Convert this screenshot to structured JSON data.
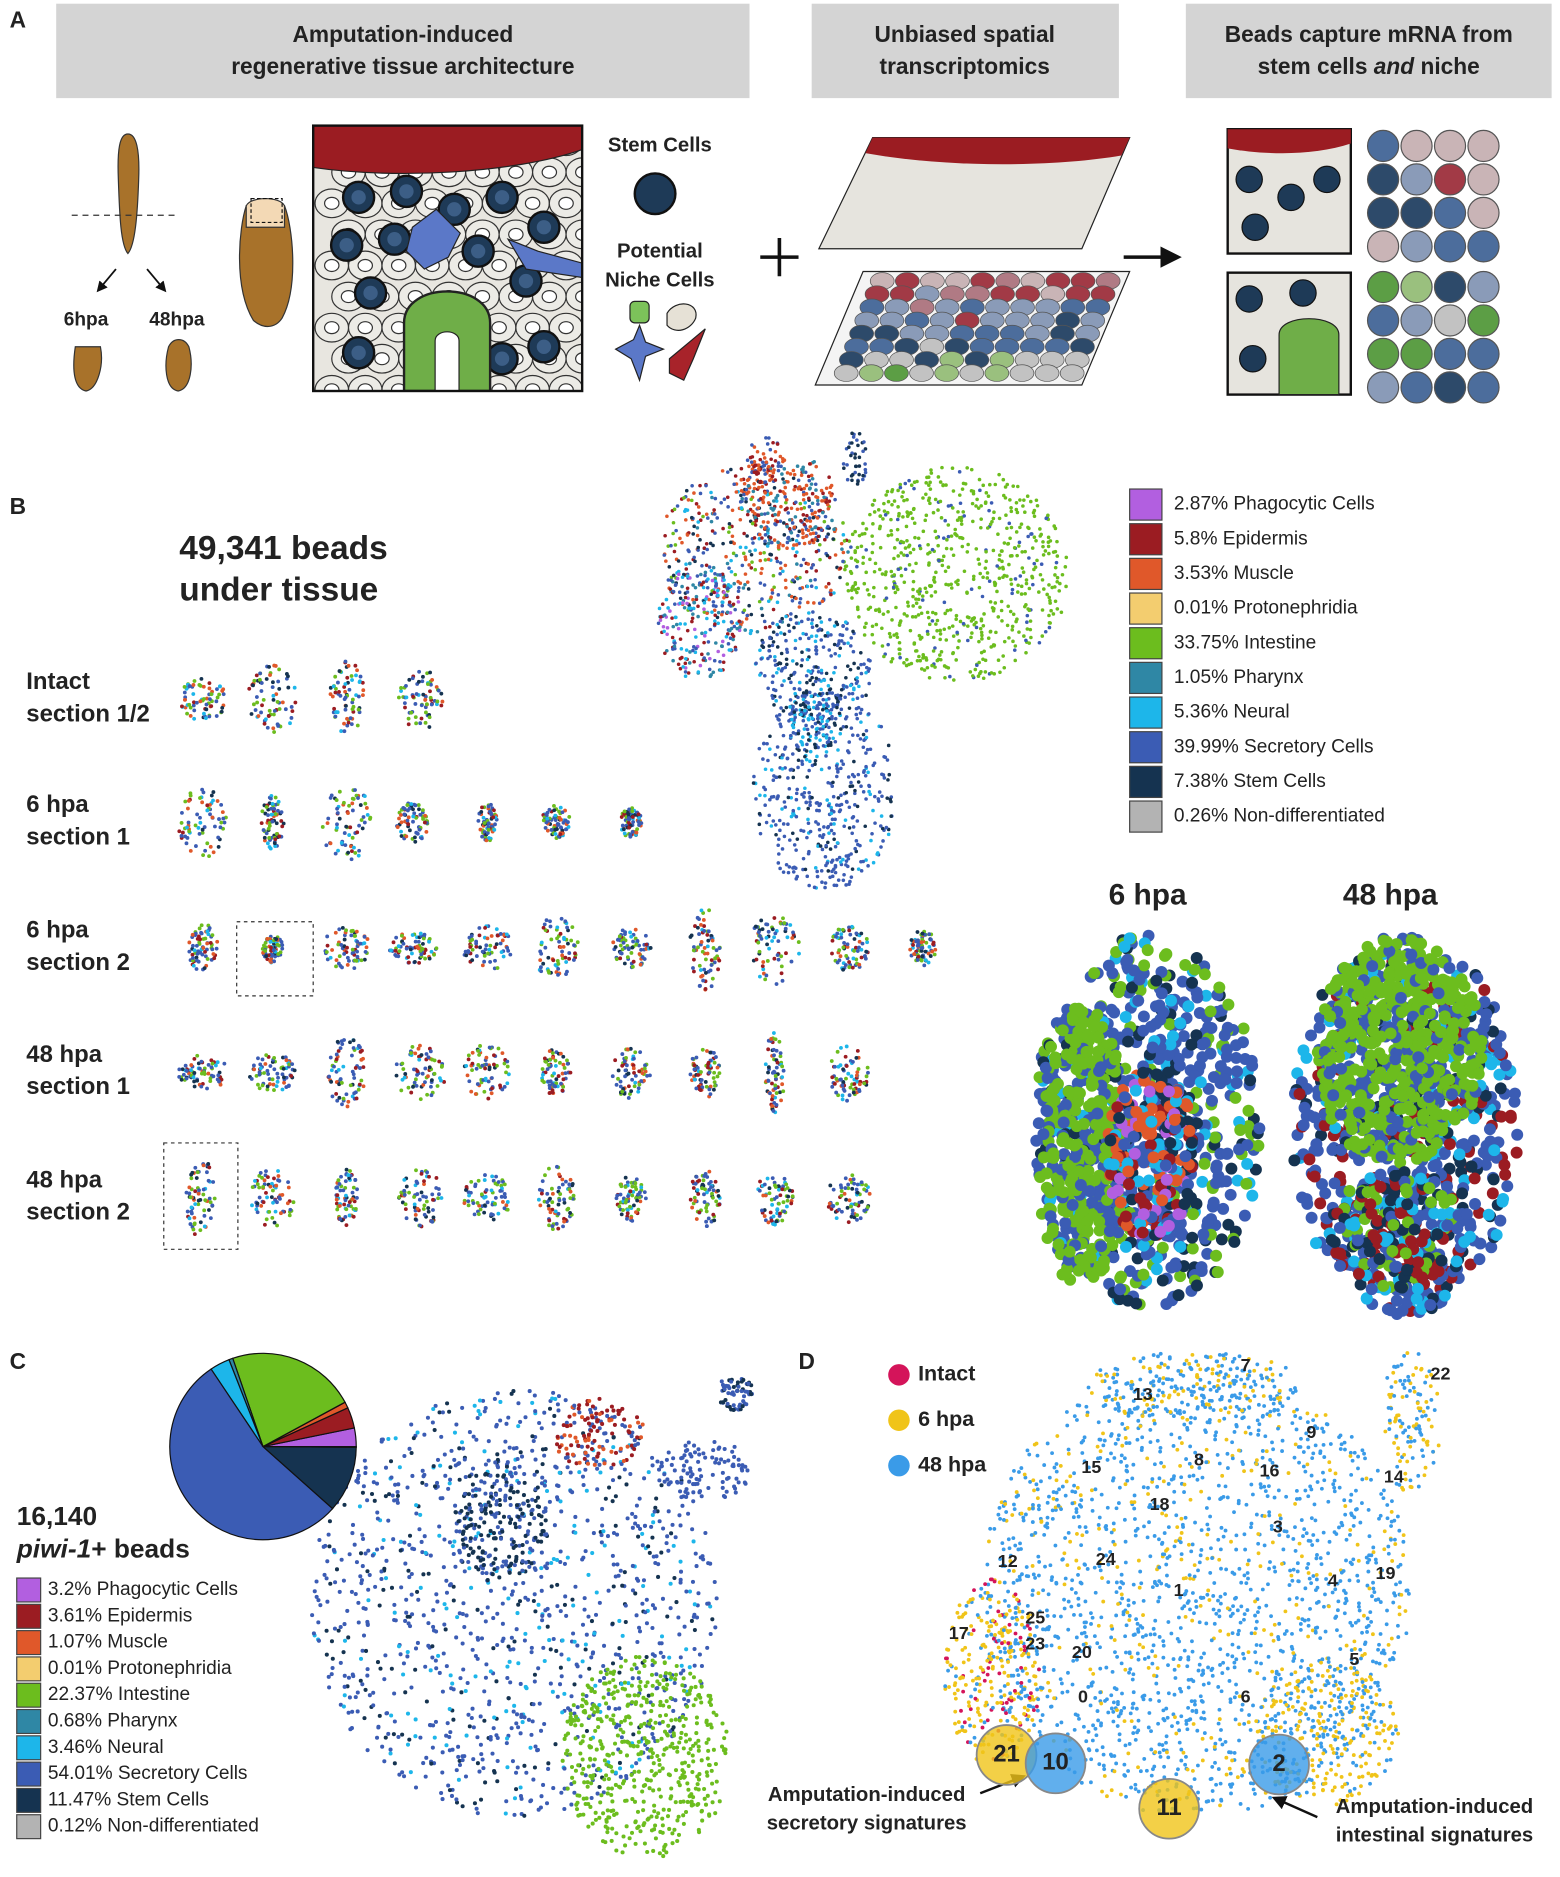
{
  "panel_a": {
    "label": "A",
    "boxes": [
      [
        "Amputation-induced",
        "regenerative tissue architecture"
      ],
      [
        "Unbiased spatial",
        "transcriptomics"
      ]
    ],
    "box3": {
      "line1": "Beads capture mRNA from",
      "line2": [
        "stem cells ",
        "and",
        " niche"
      ]
    },
    "worm_labels": [
      "6hpa",
      "48hpa"
    ],
    "stem_cells": "Stem Cells",
    "niche": [
      "Potential",
      "Niche Cells"
    ]
  },
  "panel_b": {
    "label": "B",
    "bead_count": [
      "49,341 beads",
      "under tissue"
    ],
    "rows": [
      [
        "Intact",
        "section 1/2"
      ],
      [
        "6 hpa",
        "section 1"
      ],
      [
        "6 hpa",
        "section 2"
      ],
      [
        "48 hpa",
        "section 1"
      ],
      [
        "48 hpa",
        "section 2"
      ]
    ],
    "legend": {
      "labels": [
        "2.87% Phagocytic Cells",
        "5.8% Epidermis",
        "3.53% Muscle",
        "0.01% Protonephridia",
        "33.75% Intestine",
        "1.05% Pharynx",
        "5.36% Neural",
        "39.99% Secretory Cells",
        "7.38% Stem Cells",
        "0.26% Non-differentiated"
      ],
      "colors": [
        "#b25fe0",
        "#9b1c22",
        "#e0582a",
        "#f3cd6f",
        "#6cbd1e",
        "#2f87a5",
        "#1db6ea",
        "#3b5cb4",
        "#153350",
        "#b3b3b3"
      ]
    },
    "zoom_titles": [
      "6 hpa",
      "48 hpa"
    ]
  },
  "panel_c": {
    "label": "C",
    "count": "16,140",
    "count_sub": [
      "piwi-1",
      "+ beads"
    ],
    "pie": {
      "type": "pie",
      "values": [
        3.2,
        3.61,
        1.07,
        0.01,
        22.37,
        0.68,
        3.46,
        54.01,
        11.47,
        0.12
      ],
      "value_labels": [
        "3.2% Phagocytic Cells",
        "3.61% Epidermis",
        "1.07% Muscle",
        "0.01% Protonephridia",
        "22.37% Intestine",
        "0.68% Pharynx",
        "3.46% Neural",
        "54.01% Secretory Cells",
        "11.47% Stem Cells",
        "0.12% Non-differentiated"
      ],
      "colors": [
        "#b25fe0",
        "#9b1c22",
        "#e0582a",
        "#f3cd6f",
        "#6cbd1e",
        "#2f87a5",
        "#1db6ea",
        "#3b5cb4",
        "#153350",
        "#b3b3b3"
      ]
    }
  },
  "panel_d": {
    "label": "D",
    "legend": {
      "labels": [
        "Intact",
        "6 hpa",
        "48 hpa"
      ],
      "colors": [
        "#d4145a",
        "#f0c419",
        "#3a9be8"
      ]
    },
    "clusters": [
      7,
      22,
      13,
      9,
      15,
      8,
      16,
      14,
      18,
      3,
      12,
      24,
      1,
      4,
      19,
      25,
      17,
      23,
      20,
      5,
      0,
      6,
      21,
      10,
      11,
      2
    ],
    "annotations": [
      [
        "Amputation-induced",
        "secretory signatures"
      ],
      [
        "Amputation-induced",
        "intestinal signatures"
      ]
    ]
  }
}
